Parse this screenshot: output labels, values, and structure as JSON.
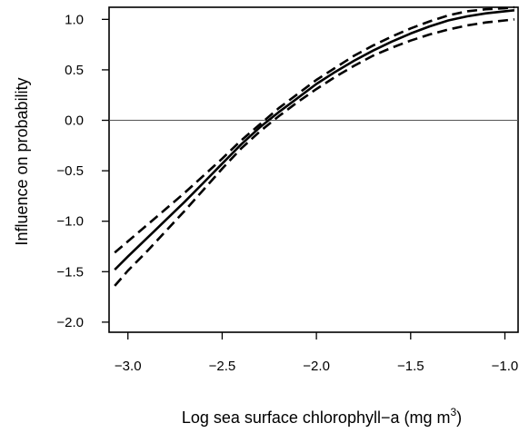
{
  "chart_data": {
    "type": "line",
    "title": "",
    "xlabel": "Log sea surface chlorophyll−a (mg m",
    "xlabel_sup": "3",
    "xlabel_suffix": ")",
    "ylabel": "Influence on probability",
    "xlim": [
      -3.1,
      -0.93
    ],
    "ylim": [
      -2.1,
      1.12
    ],
    "x_ticks": [
      -3.0,
      -2.5,
      -2.0,
      -1.5,
      -1.0
    ],
    "x_tick_labels": [
      "−3.0",
      "−2.5",
      "−2.0",
      "−1.5",
      "−1.0"
    ],
    "y_ticks": [
      -2.0,
      -1.5,
      -1.0,
      -0.5,
      0.0,
      0.5,
      1.0
    ],
    "y_tick_labels": [
      "−2.0",
      "−1.5",
      "−1.0",
      "−0.5",
      "0.0",
      "0.5",
      "1.0"
    ],
    "reference_line_y": 0.0,
    "grid": false,
    "legend": "none",
    "series": [
      {
        "role": "fit",
        "style": "solid",
        "x": [
          -3.07,
          -3.0,
          -2.9,
          -2.8,
          -2.7,
          -2.6,
          -2.5,
          -2.4,
          -2.3,
          -2.2,
          -2.1,
          -2.0,
          -1.9,
          -1.8,
          -1.7,
          -1.6,
          -1.5,
          -1.4,
          -1.3,
          -1.2,
          -1.1,
          -1.0,
          -0.95
        ],
        "y": [
          -1.48,
          -1.35,
          -1.17,
          -0.99,
          -0.81,
          -0.62,
          -0.43,
          -0.24,
          -0.07,
          0.08,
          0.22,
          0.36,
          0.48,
          0.59,
          0.69,
          0.78,
          0.86,
          0.93,
          0.99,
          1.03,
          1.06,
          1.08,
          1.09
        ]
      },
      {
        "role": "upper",
        "style": "dashed",
        "x": [
          -3.07,
          -3.0,
          -2.9,
          -2.8,
          -2.7,
          -2.6,
          -2.5,
          -2.4,
          -2.3,
          -2.2,
          -2.1,
          -2.0,
          -1.9,
          -1.8,
          -1.7,
          -1.6,
          -1.5,
          -1.4,
          -1.3,
          -1.2,
          -1.1,
          -1.0,
          -0.95
        ],
        "y": [
          -1.31,
          -1.2,
          -1.04,
          -0.88,
          -0.72,
          -0.55,
          -0.38,
          -0.2,
          -0.04,
          0.12,
          0.26,
          0.4,
          0.52,
          0.64,
          0.74,
          0.83,
          0.91,
          0.98,
          1.04,
          1.08,
          1.1,
          1.11,
          1.12
        ]
      },
      {
        "role": "lower",
        "style": "dashed",
        "x": [
          -3.07,
          -3.0,
          -2.9,
          -2.8,
          -2.7,
          -2.6,
          -2.5,
          -2.4,
          -2.3,
          -2.2,
          -2.1,
          -2.0,
          -1.9,
          -1.8,
          -1.7,
          -1.6,
          -1.5,
          -1.4,
          -1.3,
          -1.2,
          -1.1,
          -1.0,
          -0.95
        ],
        "y": [
          -1.64,
          -1.49,
          -1.3,
          -1.1,
          -0.9,
          -0.69,
          -0.48,
          -0.28,
          -0.11,
          0.04,
          0.18,
          0.31,
          0.43,
          0.54,
          0.64,
          0.72,
          0.79,
          0.85,
          0.9,
          0.94,
          0.97,
          0.99,
          1.0
        ]
      }
    ]
  }
}
